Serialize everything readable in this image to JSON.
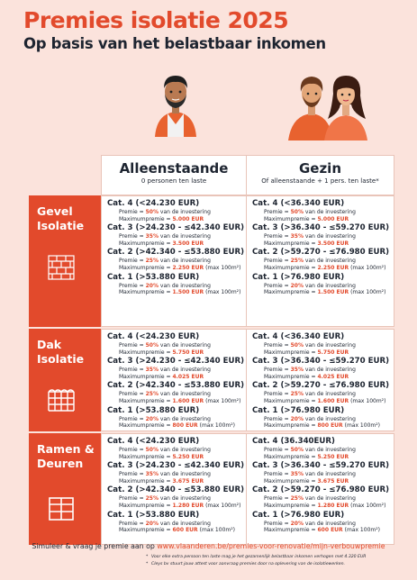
{
  "header": {
    "title": "Premies isolatie 2025",
    "subtitle": "Op basis van het belastbaar inkomen"
  },
  "columns": {
    "single": {
      "title": "Alleenstaande",
      "sub": "0 personen ten laste"
    },
    "family": {
      "title": "Gezin",
      "sub": "Of alleenstaande + 1 pers. ten laste*"
    }
  },
  "labels": {
    "premie": "Premie =",
    "investering": "van de investering",
    "max": "Maximumpremie ="
  },
  "sections": [
    {
      "label1": "Gevel",
      "label2": "Isolatie",
      "single": [
        {
          "cat": "Cat. 4 (<24.230 EUR)",
          "pct": "50%",
          "max": "5.000 EUR",
          "extra": ""
        },
        {
          "cat": "Cat. 3 (>24.230 - ≤42.340 EUR)",
          "pct": "35%",
          "max": "3.500 EUR",
          "extra": ""
        },
        {
          "cat": "Cat. 2 (>42.340 - ≤53.880 EUR)",
          "pct": "25%",
          "max": "2.250 EUR",
          "extra": "(max 100m²)"
        },
        {
          "cat": "Cat. 1 (>53.880 EUR)",
          "pct": "20%",
          "max": "1.500 EUR",
          "extra": "(max 100m²)"
        }
      ],
      "family": [
        {
          "cat": "Cat. 4 (<36.340 EUR)",
          "pct": "50%",
          "max": "5.000 EUR",
          "extra": ""
        },
        {
          "cat": "Cat. 3 (>36.340 - ≤59.270 EUR)",
          "pct": "35%",
          "max": "3.500 EUR",
          "extra": ""
        },
        {
          "cat": "Cat. 2 (>59.270 - ≤76.980 EUR)",
          "pct": "25%",
          "max": "2.250 EUR",
          "extra": "(max 100m²)"
        },
        {
          "cat": "Cat. 1 (>76.980 EUR)",
          "pct": "20%",
          "max": "1.500 EUR",
          "extra": "(max 100m²)"
        }
      ]
    },
    {
      "label1": "Dak",
      "label2": "Isolatie",
      "single": [
        {
          "cat": "Cat. 4 (<24.230 EUR)",
          "pct": "50%",
          "max": "5.750 EUR",
          "extra": ""
        },
        {
          "cat": "Cat. 3 (>24.230 - ≤42.340 EUR)",
          "pct": "35%",
          "max": "4.025 EUR",
          "extra": ""
        },
        {
          "cat": "Cat. 2 (>42.340 - ≤53.880 EUR)",
          "pct": "25%",
          "max": "1.600 EUR",
          "extra": "(max 100m²)"
        },
        {
          "cat": "Cat. 1 (>53.880 EUR)",
          "pct": "20%",
          "max": "800 EUR",
          "extra": "(max 100m²)"
        }
      ],
      "family": [
        {
          "cat": "Cat. 4 (<36.340 EUR)",
          "pct": "50%",
          "max": "5.750 EUR",
          "extra": ""
        },
        {
          "cat": "Cat. 3 (>36.340 - ≤59.270 EUR)",
          "pct": "35%",
          "max": "4.025 EUR",
          "extra": ""
        },
        {
          "cat": "Cat. 2 (>59.270 - ≤76.980 EUR)",
          "pct": "25%",
          "max": "1.600 EUR",
          "extra": "(max 100m²)"
        },
        {
          "cat": "Cat. 1 (>76.980 EUR)",
          "pct": "20%",
          "max": "800 EUR",
          "extra": "(max 100m²)"
        }
      ]
    },
    {
      "label1": "Ramen &",
      "label2": "Deuren",
      "single": [
        {
          "cat": "Cat. 4 (<24.230 EUR)",
          "pct": "50%",
          "max": "5.250 EUR",
          "extra": ""
        },
        {
          "cat": "Cat. 3 (>24.230 - ≤42.340 EUR)",
          "pct": "35%",
          "max": "3.675 EUR",
          "extra": ""
        },
        {
          "cat": "Cat. 2 (>42.340 - ≤53.880 EUR)",
          "pct": "25%",
          "max": "1.280 EUR",
          "extra": "(max 100m²)"
        },
        {
          "cat": "Cat. 1 (>53.880 EUR)",
          "pct": "20%",
          "max": "600 EUR",
          "extra": "(max 100m²)"
        }
      ],
      "family": [
        {
          "cat": "Cat. 4 (36.340EUR)",
          "pct": "50%",
          "max": "5.250 EUR",
          "extra": ""
        },
        {
          "cat": "Cat. 3 (>36.340 - ≤59.270 EUR)",
          "pct": "35%",
          "max": "3.675 EUR",
          "extra": ""
        },
        {
          "cat": "Cat. 2 (>59.270 - ≤76.980 EUR)",
          "pct": "25%",
          "max": "1.280 EUR",
          "extra": "(max 100m²)"
        },
        {
          "cat": "Cat. 1 (>76.980 EUR)",
          "pct": "20%",
          "max": "600 EUR",
          "extra": "(max 100m²)"
        }
      ]
    }
  ],
  "footer": {
    "text": "Simuleer & vraag je premie aan op",
    "url": "www.vlaanderen.be/premies-voor-renovatie/mijn-verbouwpremie",
    "note1": "Voor elke extra persoon ten laste mag je het gezamenlijk belastbaar inkomen verhogen met 4.320 EUR",
    "note2": "Cleys bv stuurt jouw attest voor aanvraag premies door na oplevering van de isolatiewerken."
  },
  "colors": {
    "accent": "#e24a2c",
    "background": "#fbe3dc",
    "text": "#1d2430"
  },
  "icons": [
    "single-person-illustration",
    "couple-illustration",
    "brick-wall-icon",
    "roof-tiles-icon",
    "window-icon"
  ]
}
